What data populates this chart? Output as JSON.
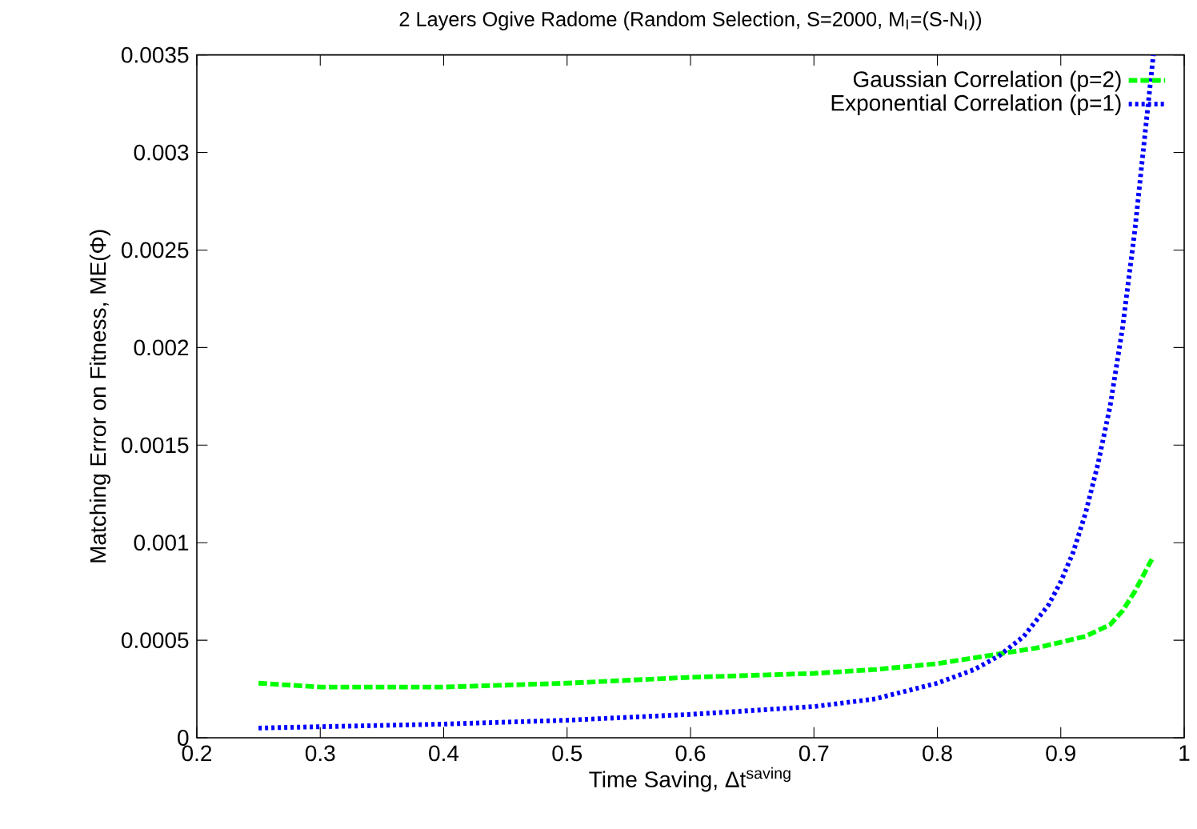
{
  "chart_data": {
    "type": "line",
    "title": "2 Layers Ogive Radome (Random Selection, S=2000, M$_{I}$=(S-N$_{I}$))",
    "xlabel": "Time Saving, Δt$^{saving}$",
    "ylabel": "Matching Error on Fitness, ME(Φ)",
    "xlim": [
      0.2,
      1
    ],
    "xticks": [
      0.2,
      0.3,
      0.4,
      0.5,
      0.6,
      0.7,
      0.8,
      0.9,
      1
    ],
    "ylim": [
      0,
      0.0035
    ],
    "yticks": [
      0,
      0.0005,
      0.001,
      0.0015,
      0.002,
      0.0025,
      0.003,
      0.0035
    ],
    "grid": false,
    "legend": "top right",
    "marker": "none",
    "series": [
      {
        "name": "Gaussian Correlation (p=2)",
        "color": "#00ff00",
        "line_style": "dashed",
        "x": [
          0.25,
          0.3,
          0.35,
          0.4,
          0.5,
          0.6,
          0.7,
          0.75,
          0.8,
          0.85,
          0.88,
          0.9,
          0.92,
          0.94,
          0.95,
          0.96,
          0.975
        ],
        "values": [
          0.00028,
          0.00026,
          0.00026,
          0.00026,
          0.00028,
          0.00031,
          0.00033,
          0.00035,
          0.00038,
          0.00043,
          0.00046,
          0.00049,
          0.00052,
          0.00058,
          0.00065,
          0.00075,
          0.00093
        ]
      },
      {
        "name": "Exponential Correlation (p=1)",
        "color": "#0000ff",
        "line_style": "dotted",
        "x": [
          0.25,
          0.4,
          0.5,
          0.6,
          0.7,
          0.75,
          0.8,
          0.83,
          0.85,
          0.87,
          0.89,
          0.9,
          0.91,
          0.92,
          0.93,
          0.94,
          0.95,
          0.96,
          0.97,
          0.975
        ],
        "values": [
          5e-05,
          7e-05,
          9e-05,
          0.00012,
          0.00016,
          0.0002,
          0.00028,
          0.00035,
          0.00042,
          0.00052,
          0.00068,
          0.0008,
          0.00095,
          0.00115,
          0.0014,
          0.0017,
          0.0021,
          0.0026,
          0.0032,
          0.0035
        ]
      }
    ]
  }
}
